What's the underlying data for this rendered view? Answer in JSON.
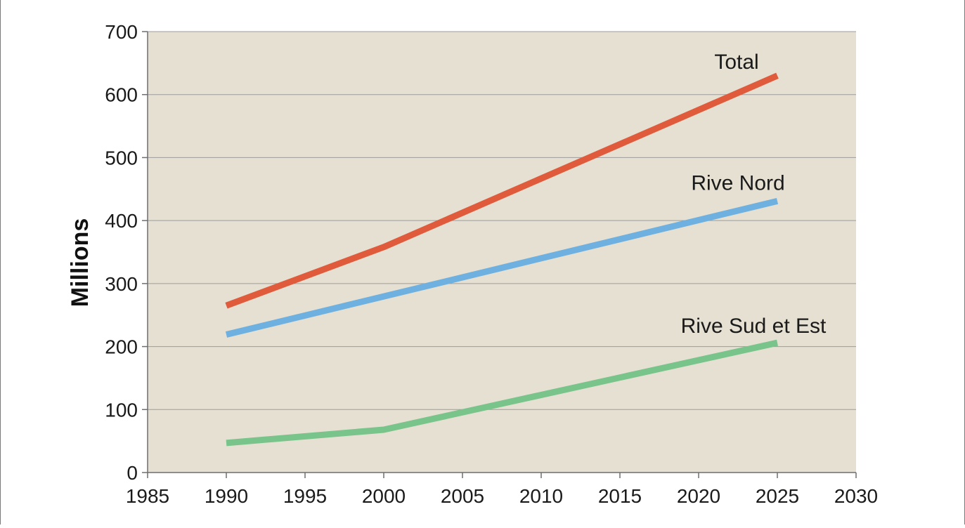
{
  "chart_data": {
    "type": "line",
    "ylabel": "Millions",
    "xlabel": "",
    "xlim": [
      1985,
      2030
    ],
    "ylim": [
      0,
      700
    ],
    "x_ticks": [
      1985,
      1990,
      1995,
      2000,
      2005,
      2010,
      2015,
      2020,
      2025,
      2030
    ],
    "y_ticks": [
      0,
      100,
      200,
      300,
      400,
      500,
      600,
      700
    ],
    "grid": true,
    "legend": "inline-labels",
    "plot_background": "#e6e0d2",
    "series": [
      {
        "name": "Total",
        "color": "#e05a3c",
        "x": [
          1990,
          2000,
          2025
        ],
        "y": [
          265,
          358,
          630
        ]
      },
      {
        "name": "Rive Nord",
        "color": "#6eb1e0",
        "x": [
          1990,
          2025
        ],
        "y": [
          219,
          431
        ]
      },
      {
        "name": "Rive Sud et Est",
        "color": "#78c48a",
        "x": [
          1990,
          2000,
          2025
        ],
        "y": [
          47,
          68,
          206
        ]
      }
    ]
  }
}
